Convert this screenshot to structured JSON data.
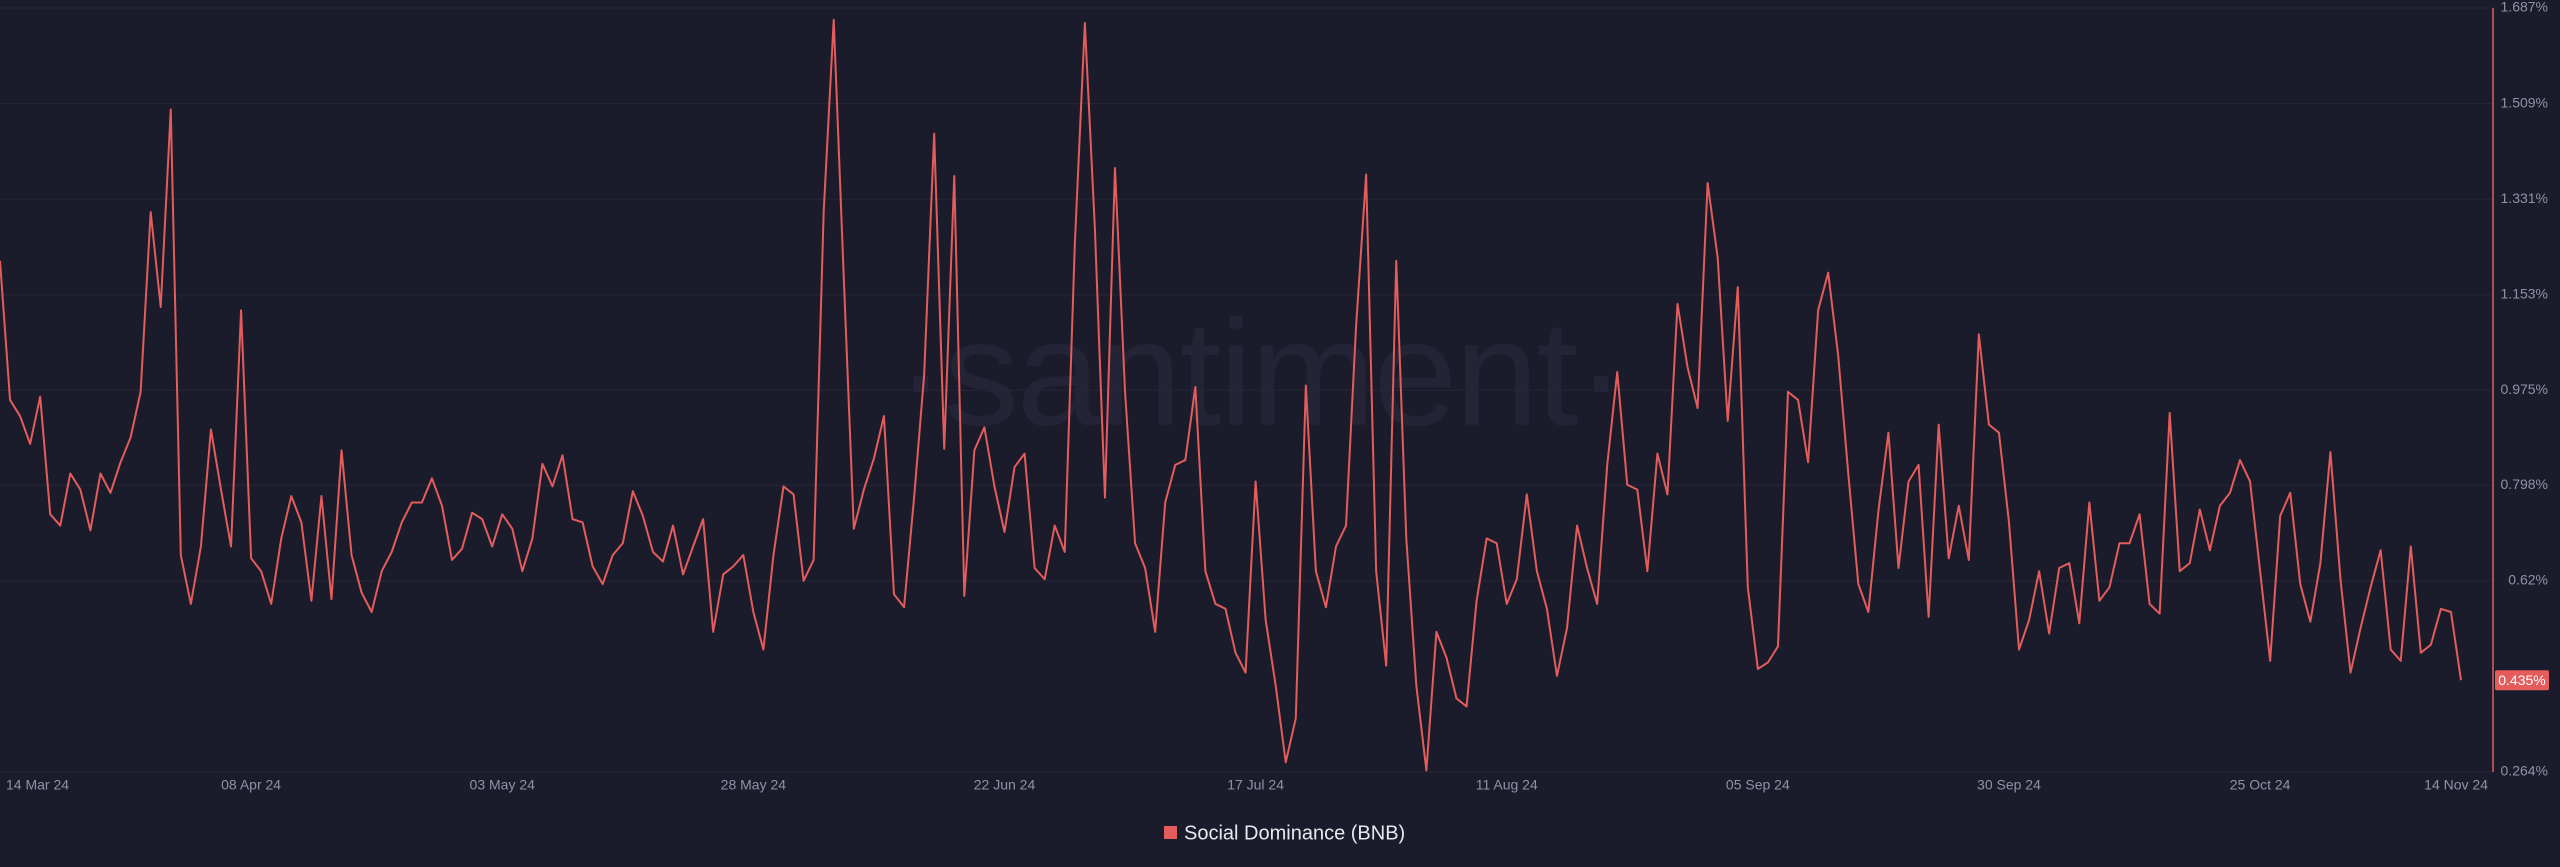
{
  "chart_data": {
    "type": "line",
    "watermark": "·santiment·",
    "x": [
      "2024-03-14",
      "2024-03-15",
      "2024-03-16",
      "2024-03-17",
      "2024-03-18",
      "2024-03-19",
      "2024-03-20",
      "2024-03-21",
      "2024-03-22",
      "2024-03-23",
      "2024-03-24",
      "2024-03-25",
      "2024-03-26",
      "2024-03-27",
      "2024-03-28",
      "2024-03-29",
      "2024-03-30",
      "2024-03-31",
      "2024-04-01",
      "2024-04-02",
      "2024-04-03",
      "2024-04-04",
      "2024-04-05",
      "2024-04-06",
      "2024-04-07",
      "2024-04-08",
      "2024-04-09",
      "2024-04-10",
      "2024-04-11",
      "2024-04-12",
      "2024-04-13",
      "2024-04-14",
      "2024-04-15",
      "2024-04-16",
      "2024-04-17",
      "2024-04-18",
      "2024-04-19",
      "2024-04-20",
      "2024-04-21",
      "2024-04-22",
      "2024-04-23",
      "2024-04-24",
      "2024-04-25",
      "2024-04-26",
      "2024-04-27",
      "2024-04-28",
      "2024-04-29",
      "2024-04-30",
      "2024-05-01",
      "2024-05-02",
      "2024-05-03",
      "2024-05-04",
      "2024-05-05",
      "2024-05-06",
      "2024-05-07",
      "2024-05-08",
      "2024-05-09",
      "2024-05-10",
      "2024-05-11",
      "2024-05-12",
      "2024-05-13",
      "2024-05-14",
      "2024-05-15",
      "2024-05-16",
      "2024-05-17",
      "2024-05-18",
      "2024-05-19",
      "2024-05-20",
      "2024-05-21",
      "2024-05-22",
      "2024-05-23",
      "2024-05-24",
      "2024-05-25",
      "2024-05-26",
      "2024-05-27",
      "2024-05-28",
      "2024-05-29",
      "2024-05-30",
      "2024-05-31",
      "2024-06-01",
      "2024-06-02",
      "2024-06-03",
      "2024-06-04",
      "2024-06-05",
      "2024-06-06",
      "2024-06-07",
      "2024-06-08",
      "2024-06-09",
      "2024-06-10",
      "2024-06-11",
      "2024-06-12",
      "2024-06-13",
      "2024-06-14",
      "2024-06-15",
      "2024-06-16",
      "2024-06-17",
      "2024-06-18",
      "2024-06-19",
      "2024-06-20",
      "2024-06-21",
      "2024-06-22",
      "2024-06-23",
      "2024-06-24",
      "2024-06-25",
      "2024-06-26",
      "2024-06-27",
      "2024-06-28",
      "2024-06-29",
      "2024-06-30",
      "2024-07-01",
      "2024-07-02",
      "2024-07-03",
      "2024-07-04",
      "2024-07-05",
      "2024-07-06",
      "2024-07-07",
      "2024-07-08",
      "2024-07-09",
      "2024-07-10",
      "2024-07-11",
      "2024-07-12",
      "2024-07-13",
      "2024-07-14",
      "2024-07-15",
      "2024-07-16",
      "2024-07-17",
      "2024-07-18",
      "2024-07-19",
      "2024-07-20",
      "2024-07-21",
      "2024-07-22",
      "2024-07-23",
      "2024-07-24",
      "2024-07-25",
      "2024-07-26",
      "2024-07-27",
      "2024-07-28",
      "2024-07-29",
      "2024-07-30",
      "2024-07-31",
      "2024-08-01",
      "2024-08-02",
      "2024-08-03",
      "2024-08-04",
      "2024-08-05",
      "2024-08-06",
      "2024-08-07",
      "2024-08-08",
      "2024-08-09",
      "2024-08-10",
      "2024-08-11",
      "2024-08-12",
      "2024-08-13",
      "2024-08-14",
      "2024-08-15",
      "2024-08-16",
      "2024-08-17",
      "2024-08-18",
      "2024-08-19",
      "2024-08-20",
      "2024-08-21",
      "2024-08-22",
      "2024-08-23",
      "2024-08-24",
      "2024-08-25",
      "2024-08-26",
      "2024-08-27",
      "2024-08-28",
      "2024-08-29",
      "2024-08-30",
      "2024-08-31",
      "2024-09-01",
      "2024-09-02",
      "2024-09-03",
      "2024-09-04",
      "2024-09-05",
      "2024-09-06",
      "2024-09-07",
      "2024-09-08",
      "2024-09-09",
      "2024-09-10",
      "2024-09-11",
      "2024-09-12",
      "2024-09-13",
      "2024-09-14",
      "2024-09-15",
      "2024-09-16",
      "2024-09-17",
      "2024-09-18",
      "2024-09-19",
      "2024-09-20",
      "2024-09-21",
      "2024-09-22",
      "2024-09-23",
      "2024-09-24",
      "2024-09-25",
      "2024-09-26",
      "2024-09-27",
      "2024-09-28",
      "2024-09-29",
      "2024-09-30",
      "2024-10-01",
      "2024-10-02",
      "2024-10-03",
      "2024-10-04",
      "2024-10-05",
      "2024-10-06",
      "2024-10-07",
      "2024-10-08",
      "2024-10-09",
      "2024-10-10",
      "2024-10-11",
      "2024-10-12",
      "2024-10-13",
      "2024-10-14",
      "2024-10-15",
      "2024-10-16",
      "2024-10-17",
      "2024-10-18",
      "2024-10-19",
      "2024-10-20",
      "2024-10-21",
      "2024-10-22",
      "2024-10-23",
      "2024-10-24",
      "2024-10-25",
      "2024-10-26",
      "2024-10-27",
      "2024-10-28",
      "2024-10-29",
      "2024-10-30",
      "2024-10-31",
      "2024-11-01",
      "2024-11-02",
      "2024-11-03",
      "2024-11-04",
      "2024-11-05",
      "2024-11-06",
      "2024-11-07",
      "2024-11-08",
      "2024-11-09",
      "2024-11-10",
      "2024-11-11",
      "2024-11-12",
      "2024-11-13",
      "2024-11-14"
    ],
    "series": [
      {
        "name": "Social Dominance (BNB)",
        "color": "#e45c5c",
        "values": [
          1.216,
          0.957,
          0.927,
          0.875,
          0.963,
          0.744,
          0.723,
          0.82,
          0.79,
          0.714,
          0.82,
          0.784,
          0.841,
          0.887,
          0.972,
          1.307,
          1.13,
          1.498,
          0.668,
          0.577,
          0.684,
          0.902,
          0.79,
          0.684,
          1.124,
          0.662,
          0.638,
          0.577,
          0.699,
          0.778,
          0.729,
          0.583,
          0.778,
          0.586,
          0.863,
          0.668,
          0.598,
          0.562,
          0.638,
          0.674,
          0.729,
          0.766,
          0.766,
          0.811,
          0.76,
          0.659,
          0.68,
          0.747,
          0.735,
          0.684,
          0.744,
          0.717,
          0.638,
          0.699,
          0.838,
          0.796,
          0.854,
          0.735,
          0.729,
          0.647,
          0.614,
          0.668,
          0.69,
          0.787,
          0.741,
          0.674,
          0.656,
          0.723,
          0.632,
          0.684,
          0.735,
          0.525,
          0.632,
          0.647,
          0.668,
          0.562,
          0.492,
          0.668,
          0.796,
          0.781,
          0.62,
          0.659,
          1.307,
          1.665,
          1.185,
          0.717,
          0.79,
          0.848,
          0.927,
          0.595,
          0.571,
          0.775,
          1.003,
          1.453,
          0.866,
          1.374,
          0.592,
          0.863,
          0.906,
          0.796,
          0.711,
          0.832,
          0.857,
          0.644,
          0.623,
          0.723,
          0.674,
          1.246,
          1.659,
          1.276,
          0.775,
          1.389,
          0.972,
          0.69,
          0.644,
          0.525,
          0.766,
          0.836,
          0.845,
          0.981,
          0.638,
          0.577,
          0.568,
          0.486,
          0.449,
          0.805,
          0.547,
          0.425,
          0.282,
          0.364,
          0.984,
          0.638,
          0.571,
          0.684,
          0.723,
          1.094,
          1.377,
          0.638,
          0.462,
          1.216,
          0.699,
          0.425,
          0.267,
          0.525,
          0.477,
          0.401,
          0.386,
          0.583,
          0.699,
          0.69,
          0.577,
          0.623,
          0.781,
          0.638,
          0.568,
          0.443,
          0.532,
          0.723,
          0.644,
          0.577,
          0.835,
          1.009,
          0.799,
          0.79,
          0.638,
          0.857,
          0.781,
          1.136,
          1.018,
          0.942,
          1.361,
          1.222,
          0.918,
          1.167,
          0.608,
          0.456,
          0.468,
          0.498,
          0.972,
          0.957,
          0.841,
          1.124,
          1.194,
          1.039,
          0.82,
          0.614,
          0.562,
          0.75,
          0.896,
          0.644,
          0.805,
          0.836,
          0.553,
          0.911,
          0.662,
          0.76,
          0.659,
          1.079,
          0.911,
          0.896,
          0.729,
          0.492,
          0.547,
          0.638,
          0.522,
          0.644,
          0.653,
          0.541,
          0.766,
          0.583,
          0.608,
          0.69,
          0.69,
          0.744,
          0.577,
          0.559,
          0.933,
          0.638,
          0.653,
          0.753,
          0.677,
          0.76,
          0.784,
          0.845,
          0.805,
          0.638,
          0.471,
          0.741,
          0.784,
          0.614,
          0.544,
          0.653,
          0.86,
          0.623,
          0.449,
          0.532,
          0.608,
          0.677,
          0.492,
          0.471,
          0.684,
          0.486,
          0.501,
          0.568,
          0.562,
          0.435
        ]
      }
    ],
    "xlim": [
      "2024-03-14",
      "2024-11-14"
    ],
    "xticks": [
      {
        "value": "2024-03-14",
        "label": "14 Mar 24"
      },
      {
        "value": "2024-04-08",
        "label": "08 Apr 24"
      },
      {
        "value": "2024-05-03",
        "label": "03 May 24"
      },
      {
        "value": "2024-05-28",
        "label": "28 May 24"
      },
      {
        "value": "2024-06-22",
        "label": "22 Jun 24"
      },
      {
        "value": "2024-07-17",
        "label": "17 Jul 24"
      },
      {
        "value": "2024-08-11",
        "label": "11 Aug 24"
      },
      {
        "value": "2024-09-05",
        "label": "05 Sep 24"
      },
      {
        "value": "2024-09-30",
        "label": "30 Sep 24"
      },
      {
        "value": "2024-10-25",
        "label": "25 Oct 24"
      },
      {
        "value": "2024-11-14",
        "label": "14 Nov 24"
      }
    ],
    "ylim": [
      0.264,
      1.687
    ],
    "yticks": [
      {
        "value": 0.264,
        "label": "0.264%"
      },
      {
        "value": 0.62,
        "label": "0.62%"
      },
      {
        "value": 0.798,
        "label": "0.798%"
      },
      {
        "value": 0.975,
        "label": "0.975%"
      },
      {
        "value": 1.153,
        "label": "1.153%"
      },
      {
        "value": 1.331,
        "label": "1.331%"
      },
      {
        "value": 1.509,
        "label": "1.509%"
      },
      {
        "value": 1.687,
        "label": "1.687%"
      }
    ],
    "current_value": {
      "value": 0.435,
      "label": "0.435%"
    },
    "grid": true
  }
}
